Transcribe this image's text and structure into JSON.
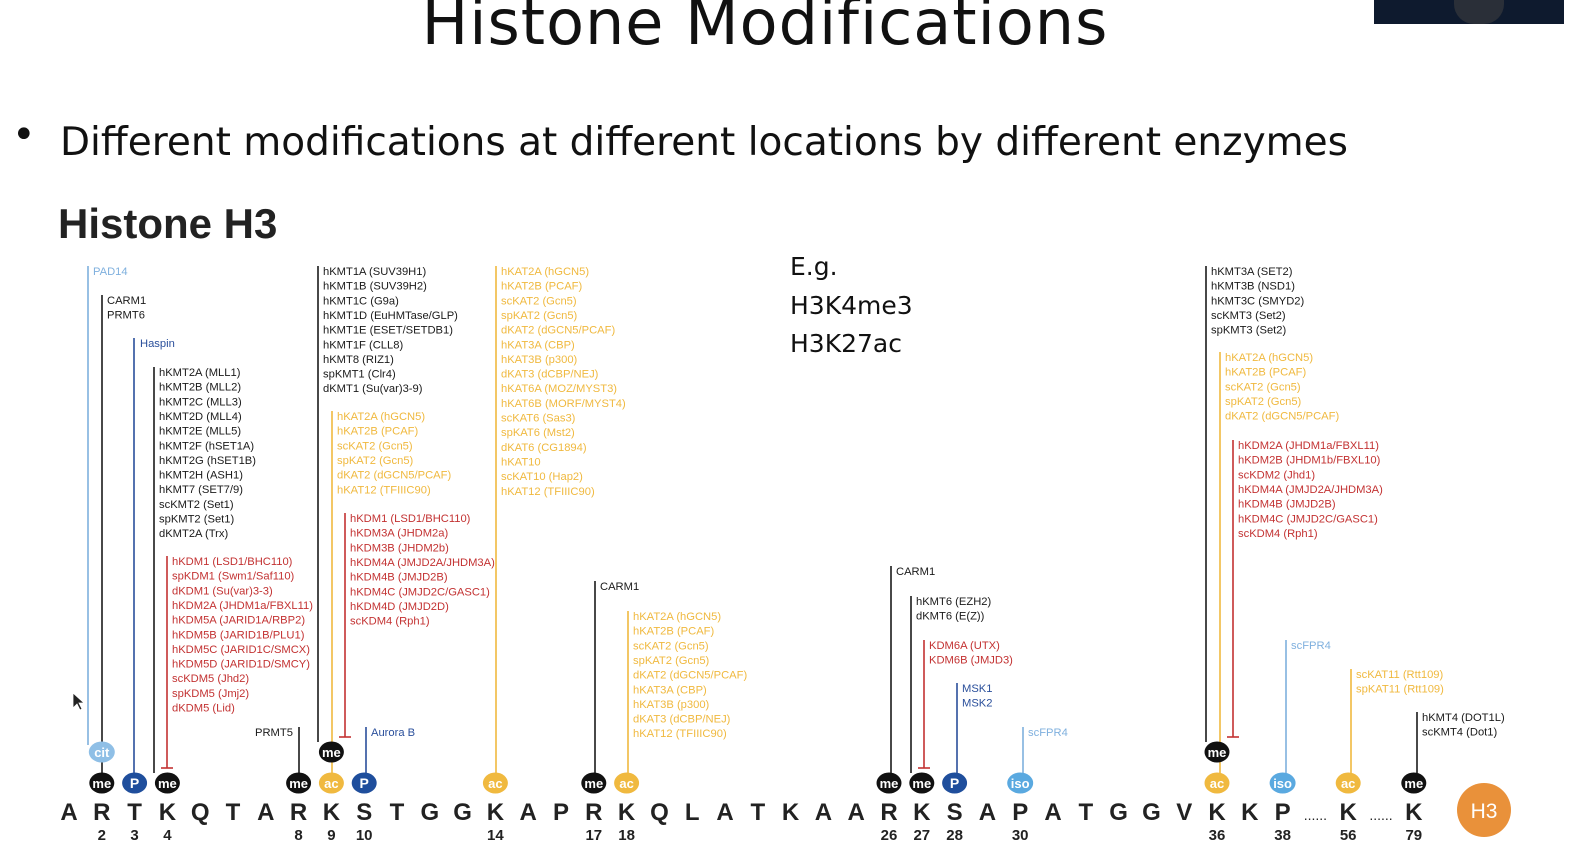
{
  "slide": {
    "title": "Histone Modifications",
    "bullet": "Different modifications at different locations by different enzymes",
    "panel_title": "Histone H3",
    "example": [
      "E.g.",
      "H3K4me3",
      "H3K27ac"
    ]
  },
  "colors": {
    "me": "#111111",
    "P": "#1f4e9c",
    "ac": "#f0b93f",
    "cit": "#8fbfe6",
    "iso": "#5aa9e0",
    "writer_black": "#1a1a1a",
    "writer_yellow": "#f0b93f",
    "eraser_red": "#c33232",
    "kinase_blue": "#2a4f9b",
    "light_blue": "#7fb0de",
    "badge": "#e9913a"
  },
  "sequence": [
    "A",
    "R",
    "T",
    "K",
    "Q",
    "T",
    "A",
    "R",
    "K",
    "S",
    "T",
    "G",
    "G",
    "K",
    "A",
    "P",
    "R",
    "K",
    "Q",
    "L",
    "A",
    "T",
    "K",
    "A",
    "A",
    "R",
    "K",
    "S",
    "A",
    "P",
    "A",
    "T",
    "G",
    "G",
    "V",
    "K",
    "K",
    "P",
    "......",
    "K",
    "......",
    "K"
  ],
  "positions": [
    {
      "idx": 1,
      "label": "2"
    },
    {
      "idx": 2,
      "label": "3"
    },
    {
      "idx": 3,
      "label": "4"
    },
    {
      "idx": 7,
      "label": "8"
    },
    {
      "idx": 8,
      "label": "9"
    },
    {
      "idx": 9,
      "label": "10"
    },
    {
      "idx": 13,
      "label": "14"
    },
    {
      "idx": 16,
      "label": "17"
    },
    {
      "idx": 17,
      "label": "18"
    },
    {
      "idx": 25,
      "label": "26"
    },
    {
      "idx": 26,
      "label": "27"
    },
    {
      "idx": 27,
      "label": "28"
    },
    {
      "idx": 29,
      "label": "30"
    },
    {
      "idx": 35,
      "label": "36"
    },
    {
      "idx": 37,
      "label": "38"
    },
    {
      "idx": 39,
      "label": "56"
    },
    {
      "idx": 41,
      "label": "79"
    }
  ],
  "badge": "H3",
  "marks": [
    {
      "idx": 1,
      "row": 2,
      "type": "me",
      "label": "me"
    },
    {
      "idx": 1,
      "row": 1,
      "type": "cit",
      "label": "cit"
    },
    {
      "idx": 2,
      "row": 2,
      "type": "P",
      "label": "P"
    },
    {
      "idx": 3,
      "row": 2,
      "type": "me",
      "label": "me"
    },
    {
      "idx": 7,
      "row": 2,
      "type": "me",
      "label": "me"
    },
    {
      "idx": 8,
      "row": 2,
      "type": "ac",
      "label": "ac"
    },
    {
      "idx": 8,
      "row": 1,
      "type": "me",
      "label": "me"
    },
    {
      "idx": 9,
      "row": 2,
      "type": "P",
      "label": "P"
    },
    {
      "idx": 13,
      "row": 2,
      "type": "ac",
      "label": "ac"
    },
    {
      "idx": 16,
      "row": 2,
      "type": "me",
      "label": "me"
    },
    {
      "idx": 17,
      "row": 2,
      "type": "ac",
      "label": "ac"
    },
    {
      "idx": 25,
      "row": 2,
      "type": "me",
      "label": "me"
    },
    {
      "idx": 26,
      "row": 2,
      "type": "me",
      "label": "me"
    },
    {
      "idx": 27,
      "row": 2,
      "type": "P",
      "label": "P"
    },
    {
      "idx": 29,
      "row": 2,
      "type": "iso",
      "label": "iso"
    },
    {
      "idx": 35,
      "row": 2,
      "type": "ac",
      "label": "ac"
    },
    {
      "idx": 35,
      "row": 1,
      "type": "me",
      "label": "me"
    },
    {
      "idx": 37,
      "row": 2,
      "type": "iso",
      "label": "iso"
    },
    {
      "idx": 39,
      "row": 2,
      "type": "ac",
      "label": "ac"
    },
    {
      "idx": 41,
      "row": 2,
      "type": "me",
      "label": "me"
    }
  ],
  "enzyme_groups": [
    {
      "id": "pad14",
      "color": "light_blue",
      "lines": [
        "PAD14"
      ]
    },
    {
      "id": "r2-writers",
      "color": "writer_black",
      "lines": [
        "CARM1",
        "PRMT6"
      ]
    },
    {
      "id": "t3-kinase",
      "color": "kinase_blue",
      "lines": [
        "Haspin"
      ]
    },
    {
      "id": "k4-writers",
      "color": "writer_black",
      "lines": [
        "hKMT2A (MLL1)",
        "hKMT2B (MLL2)",
        "hKMT2C (MLL3)",
        "hKMT2D (MLL4)",
        "hKMT2E (MLL5)",
        "hKMT2F (hSET1A)",
        "hKMT2G (hSET1B)",
        "hKMT2H (ASH1)",
        "hKMT7 (SET7/9)",
        "scKMT2 (Set1)",
        "spKMT2 (Set1)",
        "dKMT2A (Trx)"
      ]
    },
    {
      "id": "k4-erasers",
      "color": "eraser_red",
      "lines": [
        "hKDM1 (LSD1/BHC110)",
        "spKDM1 (Swm1/Saf110)",
        "dKDM1 (Su(var)3-3)",
        "hKDM2A (JHDM1a/FBXL11)",
        "hKDM5A (JARID1A/RBP2)",
        "hKDM5B (JARID1B/PLU1)",
        "hKDM5C (JARID1C/SMCX)",
        "hKDM5D (JARID1D/SMCY)",
        "scKDM5 (Jhd2)",
        "spKDM5 (Jmj2)",
        "dKDM5 (Lid)"
      ]
    },
    {
      "id": "r8-writer",
      "color": "writer_black",
      "lines": [
        "PRMT5"
      ]
    },
    {
      "id": "k9-writers",
      "color": "writer_black",
      "lines": [
        "hKMT1A (SUV39H1)",
        "hKMT1B (SUV39H2)",
        "hKMT1C (G9a)",
        "hKMT1D (EuHMTase/GLP)",
        "hKMT1E (ESET/SETDB1)",
        "hKMT1F (CLL8)",
        "hKMT8 (RIZ1)",
        "spKMT1 (Clr4)",
        "dKMT1 (Su(var)3-9)"
      ]
    },
    {
      "id": "k9-acetylases",
      "color": "writer_yellow",
      "lines": [
        "hKAT2A (hGCN5)",
        "hKAT2B (PCAF)",
        "scKAT2 (Gcn5)",
        "spKAT2 (Gcn5)",
        "dKAT2 (dGCN5/PCAF)",
        "hKAT12 (TFIIIC90)"
      ]
    },
    {
      "id": "k9-erasers",
      "color": "eraser_red",
      "lines": [
        "hKDM1 (LSD1/BHC110)",
        "hKDM3A (JHDM2a)",
        "hKDM3B (JHDM2b)",
        "hKDM4A (JMJD2A/JHDM3A)",
        "hKDM4B (JMJD2B)",
        "hKDM4C (JMJD2C/GASC1)",
        "hKDM4D (JMJD2D)",
        "scKDM4 (Rph1)"
      ]
    },
    {
      "id": "s10-kinase",
      "color": "kinase_blue",
      "lines": [
        "Aurora B"
      ]
    },
    {
      "id": "k14-acetylases",
      "color": "writer_yellow",
      "lines": [
        "hKAT2A (hGCN5)",
        "hKAT2B (PCAF)",
        "scKAT2 (Gcn5)",
        "spKAT2 (Gcn5)",
        "dKAT2 (dGCN5/PCAF)",
        "hKAT3A (CBP)",
        "hKAT3B (p300)",
        "dKAT3 (dCBP/NEJ)",
        "hKAT6A (MOZ/MYST3)",
        "hKAT6B (MORF/MYST4)",
        "scKAT6 (Sas3)",
        "spKAT6 (Mst2)",
        "dKAT6 (CG1894)",
        "hKAT10",
        "scKAT10 (Hap2)",
        "hKAT12 (TFIIIC90)"
      ]
    },
    {
      "id": "r17-writer",
      "color": "writer_black",
      "lines": [
        "CARM1"
      ]
    },
    {
      "id": "k18-acetylases",
      "color": "writer_yellow",
      "lines": [
        "hKAT2A (hGCN5)",
        "hKAT2B (PCAF)",
        "scKAT2 (Gcn5)",
        "spKAT2 (Gcn5)",
        "dKAT2 (dGCN5/PCAF)",
        "hKAT3A (CBP)",
        "hKAT3B (p300)",
        "dKAT3 (dCBP/NEJ)",
        "hKAT12 (TFIIIC90)"
      ]
    },
    {
      "id": "r26-writer",
      "color": "writer_black",
      "lines": [
        "CARM1"
      ]
    },
    {
      "id": "k27-writers",
      "color": "writer_black",
      "lines": [
        "hKMT6 (EZH2)",
        "dKMT6 (E(Z))"
      ]
    },
    {
      "id": "k27-erasers",
      "color": "eraser_red",
      "lines": [
        "KDM6A (UTX)",
        "KDM6B (JMJD3)"
      ]
    },
    {
      "id": "s28-kinase",
      "color": "kinase_blue",
      "lines": [
        "MSK1",
        "MSK2"
      ]
    },
    {
      "id": "p30-isomerase",
      "color": "light_blue",
      "lines": [
        "scFPR4"
      ]
    },
    {
      "id": "k36-writers",
      "color": "writer_black",
      "lines": [
        "hKMT3A (SET2)",
        "hKMT3B (NSD1)",
        "hKMT3C (SMYD2)",
        "scKMT3 (Set2)",
        "spKMT3 (Set2)"
      ]
    },
    {
      "id": "k36-acetylases",
      "color": "writer_yellow",
      "lines": [
        "hKAT2A (hGCN5)",
        "hKAT2B (PCAF)",
        "scKAT2 (Gcn5)",
        "spKAT2 (Gcn5)",
        "dKAT2 (dGCN5/PCAF)"
      ]
    },
    {
      "id": "k36-erasers",
      "color": "eraser_red",
      "lines": [
        "hKDM2A (JHDM1a/FBXL11)",
        "hKDM2B (JHDM1b/FBXL10)",
        "scKDM2 (Jhd1)",
        "hKDM4A (JMJD2A/JHDM3A)",
        "hKDM4B (JMJD2B)",
        "hKDM4C (JMJD2C/GASC1)",
        "scKDM4 (Rph1)"
      ]
    },
    {
      "id": "p38-isomerase",
      "color": "light_blue",
      "lines": [
        "scFPR4"
      ]
    },
    {
      "id": "k56-acetylases",
      "color": "writer_yellow",
      "lines": [
        "scKAT11 (Rtt109)",
        "spKAT11 (Rtt109)"
      ]
    },
    {
      "id": "k79-writers",
      "color": "writer_black",
      "lines": [
        "hKMT4 (DOT1L)",
        "scKMT4 (Dot1)"
      ]
    }
  ]
}
